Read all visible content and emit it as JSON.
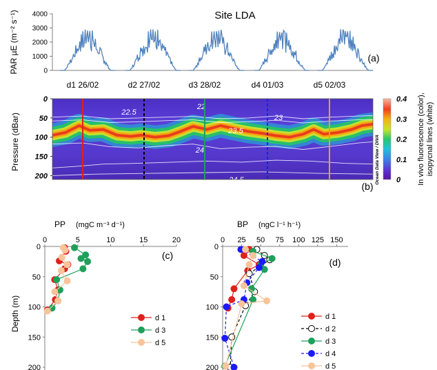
{
  "figure_title": "Site LDA",
  "watermark": "Ocean Data View / DIVA",
  "chart_data": [
    {
      "id": "a",
      "type": "line",
      "panel_label": "(a)",
      "ylabel": "PAR µE (m⁻² s⁻¹)",
      "yticks": [
        0,
        1000,
        2000,
        3000,
        4000
      ],
      "ylim": [
        0,
        4000
      ],
      "day_peaks": [
        2900,
        2950,
        2950,
        2850,
        2950
      ],
      "color": "#4f81bd"
    },
    {
      "id": "b",
      "type": "heatmap",
      "panel_label": "(b)",
      "ylabel": "Pressure (dBar)",
      "yticks": [
        0,
        50,
        100,
        150,
        200
      ],
      "ylim": [
        0,
        210
      ],
      "colorbar": {
        "label_line1": "In vivo fluorescence (color),",
        "label_line2": "isopycnal lines (white)",
        "ticks": [
          "0",
          "0.1",
          "0.2",
          "0.3",
          "0.4"
        ],
        "range": [
          0,
          0.4
        ]
      },
      "isopycnal_labels": [
        "22.5",
        "22",
        "23.5",
        "23",
        "24",
        "24.5"
      ],
      "days": [
        {
          "label": "d1 26/02",
          "color": "#e0201b",
          "style": "solid"
        },
        {
          "label": "d2 27/02",
          "color": "#000000",
          "style": "dashed"
        },
        {
          "label": "d3 28/02",
          "color": "#1fa05a",
          "style": "solid"
        },
        {
          "label": "d4 01/03",
          "color": "#1a1aff",
          "style": "dashed"
        },
        {
          "label": "d5 02/03",
          "color": "#f0a400",
          "style": "solid"
        }
      ]
    },
    {
      "id": "c",
      "type": "line",
      "panel_label": "(c)",
      "title_prefix": "PP",
      "title_units": "(mgC m⁻³ d⁻¹)",
      "xticks": [
        0,
        5,
        10,
        15,
        20
      ],
      "xlim": [
        0,
        20
      ],
      "ylabel": "Depth (m)",
      "yticks": [
        0,
        50,
        100,
        150,
        200
      ],
      "ylim": [
        0,
        200
      ],
      "series": [
        {
          "name": "d 1",
          "color": "#e0201b",
          "dashed": false,
          "open": false,
          "x": [
            3,
            3.2,
            2.2,
            3.5,
            3.0,
            1.5,
            2.0,
            1.6,
            0.4
          ],
          "y": [
            2,
            8,
            24,
            30,
            37,
            55,
            72,
            88,
            105
          ]
        },
        {
          "name": "d 3",
          "color": "#1fa05a",
          "dashed": false,
          "open": false,
          "x": [
            4.5,
            6.2,
            5.5,
            6.5,
            5.8,
            1.8,
            2.3,
            2.0,
            1.1
          ],
          "y": [
            2,
            14,
            20,
            25,
            37,
            55,
            72,
            90,
            102
          ]
        },
        {
          "name": "d 5",
          "color": "#f8c49a",
          "dashed": false,
          "open": false,
          "x": [
            2.8,
            3.1,
            2.6,
            3.4,
            2.5,
            3.4,
            1.5,
            2.0,
            0.4
          ],
          "y": [
            2,
            6,
            18,
            30,
            40,
            57,
            75,
            90,
            107
          ]
        }
      ]
    },
    {
      "id": "d",
      "type": "line",
      "panel_label": "(d)",
      "title_prefix": "BP",
      "title_units": "(ngC l⁻¹ h⁻¹)",
      "xticks": [
        0,
        25,
        50,
        75,
        100,
        125,
        150
      ],
      "xlim": [
        0,
        165
      ],
      "ylabel": "",
      "yticks": [
        0,
        50,
        100,
        150,
        200
      ],
      "ylim": [
        0,
        200
      ],
      "series": [
        {
          "name": "d 1",
          "color": "#e0201b",
          "dashed": false,
          "open": false,
          "x": [
            35,
            28,
            48,
            33,
            15,
            12,
            7
          ],
          "y": [
            5,
            15,
            30,
            40,
            70,
            88,
            102
          ]
        },
        {
          "name": "d 2",
          "color": "#000000",
          "dashed": true,
          "open": true,
          "x": [
            45,
            55,
            62,
            35,
            42,
            30,
            12,
            10
          ],
          "y": [
            5,
            15,
            22,
            45,
            75,
            98,
            150,
            200
          ]
        },
        {
          "name": "d 3",
          "color": "#1fa05a",
          "dashed": false,
          "open": false,
          "x": [
            40,
            65,
            50,
            55,
            38,
            40,
            3
          ],
          "y": [
            8,
            20,
            30,
            38,
            70,
            88,
            198
          ]
        },
        {
          "name": "d 4",
          "color": "#1a1aff",
          "dashed": true,
          "open": false,
          "x": [
            24,
            52,
            48,
            32,
            28,
            5,
            3,
            15
          ],
          "y": [
            5,
            25,
            35,
            60,
            88,
            100,
            152,
            200
          ]
        },
        {
          "name": "d 5",
          "color": "#f8c49a",
          "dashed": false,
          "open": false,
          "x": [
            30,
            40,
            35,
            28,
            58,
            25,
            4
          ],
          "y": [
            5,
            15,
            30,
            65,
            90,
            95,
            198
          ]
        }
      ]
    }
  ]
}
